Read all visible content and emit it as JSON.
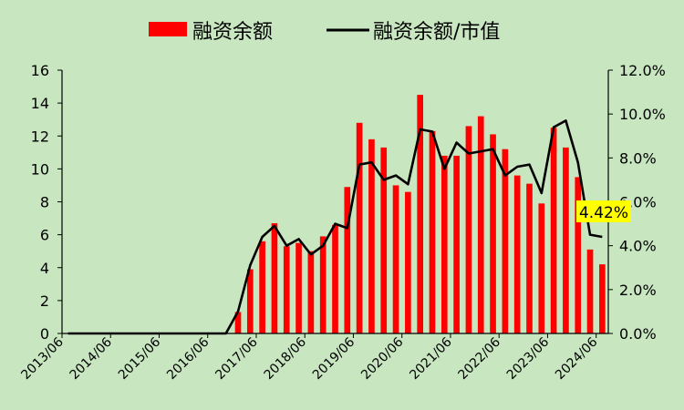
{
  "chart_data": {
    "type": "bar",
    "title": "",
    "legend": {
      "position": "top",
      "entries": [
        "融资余额",
        "融资余额/市值"
      ]
    },
    "grid": false,
    "x_tick_labels": [
      "2013/06",
      "2014/06",
      "2015/06",
      "2016/06",
      "2017/06",
      "2018/06",
      "2019/06",
      "2020/06",
      "2021/06",
      "2022/06",
      "2023/06",
      "2024/06"
    ],
    "y_left": {
      "range": [
        0,
        16
      ],
      "ticks": [
        "0",
        "2",
        "4",
        "6",
        "8",
        "10",
        "12",
        "14",
        "16"
      ]
    },
    "y_right": {
      "range": [
        0,
        12
      ],
      "ticks": [
        "0.0%",
        "2.0%",
        "4.0%",
        "6.0%",
        "8.0%",
        "10.0%",
        "12.0%"
      ]
    },
    "x_periods": [
      "2013/06",
      "2013/09",
      "2013/12",
      "2014/03",
      "2014/06",
      "2014/09",
      "2014/12",
      "2015/03",
      "2015/06",
      "2015/09",
      "2015/12",
      "2016/03",
      "2016/06",
      "2016/09",
      "2016/12",
      "2017/03",
      "2017/06",
      "2017/09",
      "2017/12",
      "2018/03",
      "2018/06",
      "2018/09",
      "2018/12",
      "2019/03",
      "2019/06",
      "2019/09",
      "2019/12",
      "2020/03",
      "2020/06",
      "2020/09",
      "2020/12",
      "2021/03",
      "2021/06",
      "2021/09",
      "2021/12",
      "2022/03",
      "2022/06",
      "2022/09",
      "2022/12",
      "2023/03",
      "2023/06",
      "2023/09",
      "2023/12",
      "2024/03",
      "2024/06"
    ],
    "series": [
      {
        "name": "融资余额",
        "type": "bar",
        "axis": "left",
        "color": "#ff0000",
        "values": [
          0,
          0,
          0,
          0,
          0,
          0,
          0,
          0,
          0,
          0,
          0,
          0,
          0,
          0,
          1.3,
          3.9,
          5.6,
          6.7,
          5.3,
          5.5,
          5.0,
          5.9,
          6.6,
          8.9,
          12.8,
          11.8,
          11.3,
          9.0,
          8.6,
          14.5,
          12.3,
          10.8,
          10.8,
          12.6,
          13.2,
          12.1,
          11.2,
          9.6,
          9.1,
          7.9,
          12.5,
          11.3,
          9.5,
          5.1,
          4.2
        ]
      },
      {
        "name": "融资余额/市值",
        "type": "line",
        "axis": "right",
        "color": "#000000",
        "values": [
          0,
          0,
          0,
          0,
          0,
          0,
          0,
          0,
          0,
          0,
          0,
          0,
          0,
          0,
          1.0,
          3.1,
          4.4,
          4.9,
          4.0,
          4.3,
          3.6,
          4.0,
          5.0,
          4.8,
          7.7,
          7.8,
          7.0,
          7.2,
          6.8,
          9.3,
          9.2,
          7.5,
          8.7,
          8.2,
          8.3,
          8.4,
          7.2,
          7.6,
          7.7,
          6.4,
          9.4,
          9.7,
          7.8,
          4.5,
          4.4
        ]
      }
    ],
    "annotation": {
      "text": "4.42%",
      "background": "#ffff00"
    }
  }
}
